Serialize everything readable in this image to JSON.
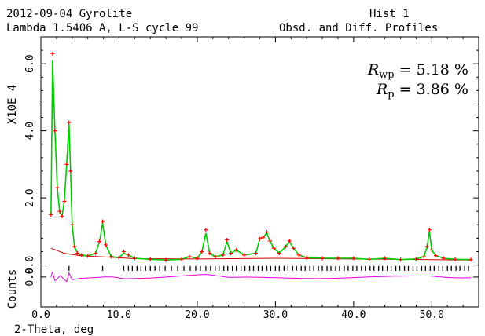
{
  "header": {
    "line1_left": "2012-09-04_Gyrolite",
    "line1_right": "Hist  1",
    "line2_left": "Lambda 1.5406 A, L-S cycle   99",
    "line2_right": "Obsd. and Diff. Profiles"
  },
  "annotations": {
    "rwp_symbol": "R",
    "rwp_sub": "wp",
    "rwp_value": " = 5.18 %",
    "rp_symbol": "R",
    "rp_sub": "p",
    "rp_value": " = 3.86 %"
  },
  "chart_data": {
    "type": "line",
    "xlabel": "2-Theta, deg",
    "ylabel": "Counts",
    "y_scale_label": "X10E  4",
    "xlim": [
      0,
      56
    ],
    "ylim": [
      -1.25,
      6.8
    ],
    "x_ticks": [
      "0.0",
      "10.0",
      "20.0",
      "30.0",
      "40.0",
      "50.0"
    ],
    "y_ticks": [
      "0.0",
      "2.0",
      "4.0",
      "6.0"
    ],
    "diff_tick_label": "0.0",
    "grid": false,
    "colors": {
      "observed": "#ff0000",
      "calculated": "#00cc00",
      "background": "#cc0000",
      "reflections": "#000000",
      "difference": "#e000e0"
    },
    "series": [
      {
        "key": "observed",
        "x": [
          1.3,
          1.5,
          1.8,
          2.1,
          2.4,
          2.7,
          3.0,
          3.3,
          3.6,
          3.8,
          4.0,
          4.3,
          4.7,
          5.2,
          6.0,
          7.0,
          7.5,
          7.9,
          8.3,
          9.0,
          10.0,
          10.6,
          11.2,
          12.0,
          14.0,
          16.0,
          18.0,
          19.0,
          20.0,
          20.6,
          21.1,
          21.6,
          22.3,
          23.3,
          23.8,
          24.3,
          25.0,
          26.0,
          27.5,
          28.0,
          28.4,
          28.9,
          29.3,
          29.8,
          30.5,
          31.3,
          31.8,
          32.3,
          33.0,
          34.0,
          36.0,
          38.0,
          40.0,
          42.0,
          44.0,
          46.0,
          48.0,
          49.0,
          49.4,
          49.7,
          50.0,
          50.5,
          51.5,
          53.0,
          55.0
        ],
        "y": [
          1.5,
          6.3,
          4.0,
          2.3,
          1.6,
          1.45,
          1.9,
          3.0,
          4.25,
          2.8,
          1.2,
          0.55,
          0.35,
          0.3,
          0.27,
          0.35,
          0.7,
          1.3,
          0.6,
          0.25,
          0.22,
          0.4,
          0.3,
          0.2,
          0.17,
          0.15,
          0.17,
          0.25,
          0.2,
          0.4,
          1.05,
          0.35,
          0.25,
          0.3,
          0.75,
          0.35,
          0.45,
          0.3,
          0.35,
          0.78,
          0.82,
          0.98,
          0.72,
          0.5,
          0.35,
          0.55,
          0.72,
          0.5,
          0.3,
          0.22,
          0.2,
          0.2,
          0.2,
          0.17,
          0.2,
          0.16,
          0.18,
          0.25,
          0.55,
          1.05,
          0.45,
          0.28,
          0.2,
          0.17,
          0.16
        ]
      },
      {
        "key": "calculated",
        "x": [
          1.3,
          1.5,
          1.8,
          2.1,
          2.4,
          2.7,
          3.0,
          3.3,
          3.6,
          3.8,
          4.0,
          4.3,
          4.7,
          5.2,
          6.0,
          7.0,
          7.5,
          7.9,
          8.3,
          9.0,
          10.0,
          10.6,
          11.2,
          12.0,
          14.0,
          16.0,
          18.0,
          19.0,
          20.0,
          20.6,
          21.1,
          21.6,
          22.3,
          23.3,
          23.8,
          24.3,
          25.0,
          26.0,
          27.5,
          28.0,
          28.4,
          28.9,
          29.3,
          29.8,
          30.5,
          31.3,
          31.8,
          32.3,
          33.0,
          34.0,
          36.0,
          38.0,
          40.0,
          42.0,
          44.0,
          46.0,
          48.0,
          49.0,
          49.4,
          49.7,
          50.0,
          50.5,
          51.5,
          53.0,
          55.0
        ],
        "y": [
          1.5,
          6.1,
          4.0,
          2.3,
          1.6,
          1.45,
          1.9,
          3.0,
          4.2,
          2.8,
          1.2,
          0.55,
          0.35,
          0.3,
          0.27,
          0.35,
          0.7,
          1.25,
          0.6,
          0.25,
          0.22,
          0.35,
          0.3,
          0.2,
          0.17,
          0.15,
          0.17,
          0.25,
          0.2,
          0.4,
          0.95,
          0.35,
          0.25,
          0.3,
          0.7,
          0.35,
          0.45,
          0.3,
          0.35,
          0.78,
          0.82,
          0.95,
          0.72,
          0.5,
          0.35,
          0.55,
          0.7,
          0.5,
          0.3,
          0.22,
          0.2,
          0.2,
          0.2,
          0.17,
          0.2,
          0.16,
          0.18,
          0.25,
          0.55,
          1.0,
          0.45,
          0.28,
          0.2,
          0.17,
          0.16
        ]
      },
      {
        "key": "background",
        "x": [
          1.3,
          3.0,
          5.0,
          8.0,
          12.0,
          20.0,
          30.0,
          40.0,
          50.0,
          55.0
        ],
        "y": [
          0.5,
          0.35,
          0.28,
          0.24,
          0.19,
          0.18,
          0.2,
          0.18,
          0.16,
          0.15
        ]
      },
      {
        "key": "difference",
        "x": [
          1.3,
          1.5,
          1.8,
          2.5,
          3.3,
          3.6,
          4.0,
          5.0,
          8.0,
          10.6,
          21.1,
          24.0,
          29.0,
          40.0,
          49.7,
          55.0
        ],
        "y": [
          -0.35,
          -0.2,
          -0.45,
          -0.3,
          -0.48,
          -0.25,
          -0.42,
          -0.38,
          -0.36,
          -0.4,
          -0.3,
          -0.37,
          -0.39,
          -0.38,
          -0.33,
          -0.38
        ]
      }
    ],
    "reflections": [
      3.6,
      7.9,
      10.6,
      11.2,
      11.7,
      12.3,
      12.8,
      13.4,
      14.0,
      14.6,
      15.2,
      15.9,
      16.7,
      17.5,
      18.3,
      19.1,
      19.8,
      20.4,
      21.1,
      21.7,
      22.3,
      22.8,
      23.4,
      23.9,
      24.5,
      25.0,
      25.6,
      26.1,
      26.7,
      27.2,
      27.8,
      28.3,
      28.9,
      29.4,
      30.0,
      30.5,
      31.1,
      31.6,
      32.2,
      32.7,
      33.3,
      33.8,
      34.4,
      34.9,
      35.5,
      36.0,
      36.6,
      37.1,
      37.7,
      38.2,
      38.8,
      39.3,
      39.9,
      40.4,
      41.0,
      41.5,
      42.1,
      42.6,
      43.2,
      43.7,
      44.3,
      44.8,
      45.4,
      45.9,
      46.5,
      47.0,
      47.6,
      48.1,
      48.7,
      49.2,
      49.8,
      50.3,
      50.9,
      51.4,
      52.0,
      52.5,
      53.1,
      53.6,
      54.2,
      54.7
    ]
  }
}
